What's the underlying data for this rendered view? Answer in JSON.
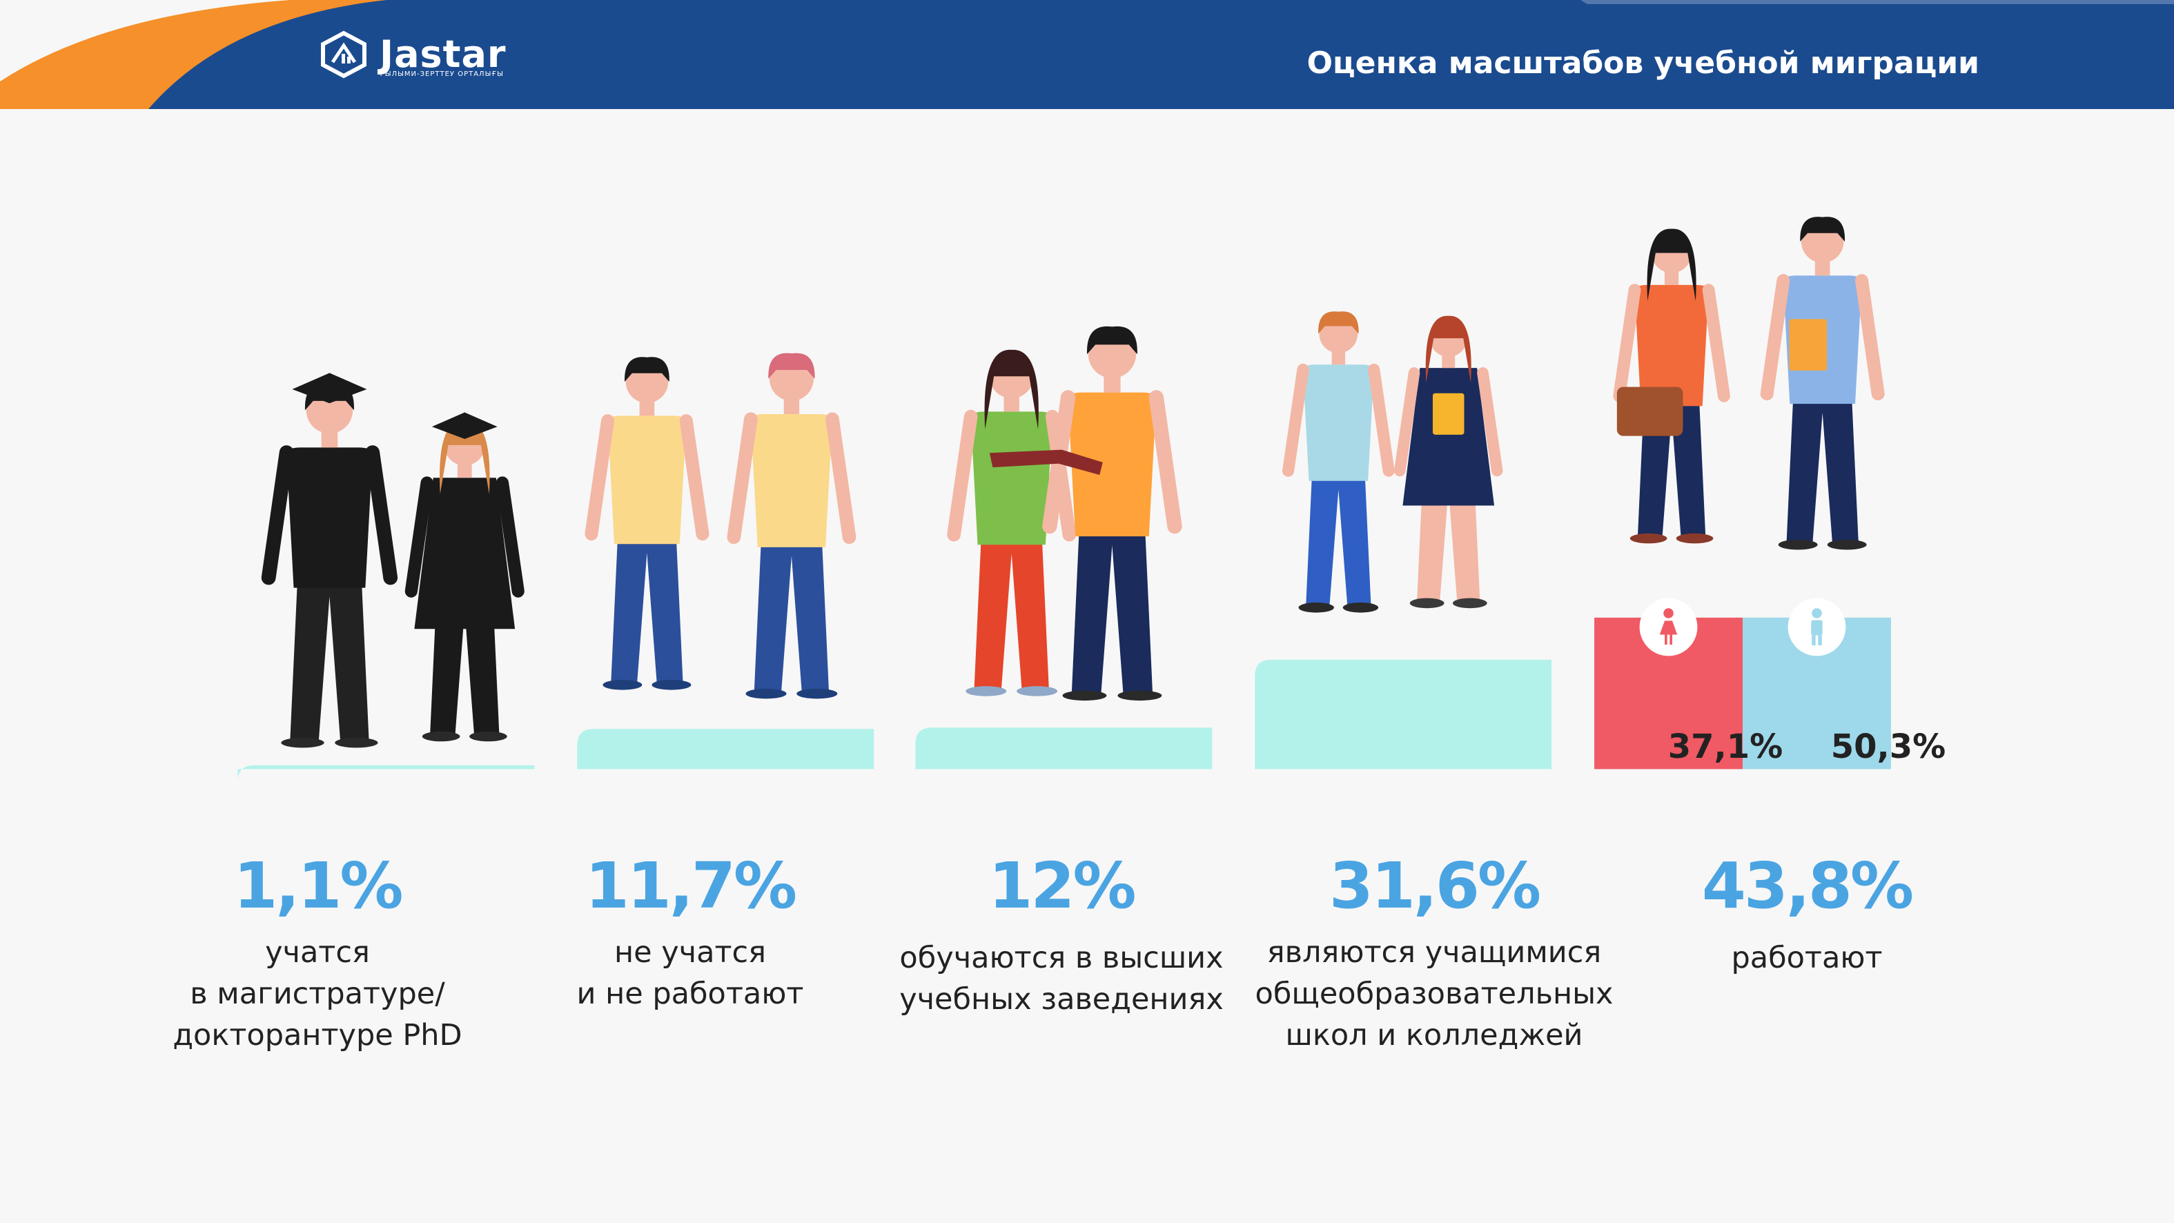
{
  "header": {
    "logo_text": "Jastar",
    "logo_subtitle": "ҒЫЛЫМИ-ЗЕРТТЕУ ОРТАЛЫҒЫ",
    "title": "Оценка масштабов учебной миграции"
  },
  "colors": {
    "header_blue": "#1b4b8f",
    "header_orange": "#f5902a",
    "pedestal": "#b3f2ea",
    "value_blue": "#4ba4e2",
    "female_red": "#f05a64",
    "male_blue": "#9ed8eb"
  },
  "chart_data": {
    "type": "bar",
    "title": "Оценка масштабов учебной миграции",
    "categories": [
      "учатся в магистратуре/ докторантуре PhD",
      "не учатся и не работают",
      "обучаются в высших учебных заведениях",
      "являются учащимися общеобразовательных школ и колледжей",
      "работают"
    ],
    "series": [
      {
        "values": [
          1.1,
          11.7,
          12,
          31.6,
          43.8
        ]
      }
    ],
    "value_labels": [
      "1,1%",
      "11,7%",
      "12%",
      "31,6%",
      "43,8%"
    ],
    "descriptions": [
      "учатся\nв магистратуре/\nдокторантуре PhD",
      "не учатся\nи не работают",
      "обучаются в высших\nучебных заведениях",
      "являются учащимися\nобщеобразовательных\nшкол и колледжей",
      "работают"
    ],
    "illustrations": [
      "graduates",
      "idle-youth",
      "students-reading",
      "school-pupils",
      "office-workers"
    ],
    "gender_breakdown": {
      "female": {
        "label": "37,1%",
        "value": 37.1,
        "icon": "female-icon"
      },
      "male": {
        "label": "50,3%",
        "value": 50.3,
        "icon": "male-icon"
      }
    }
  }
}
